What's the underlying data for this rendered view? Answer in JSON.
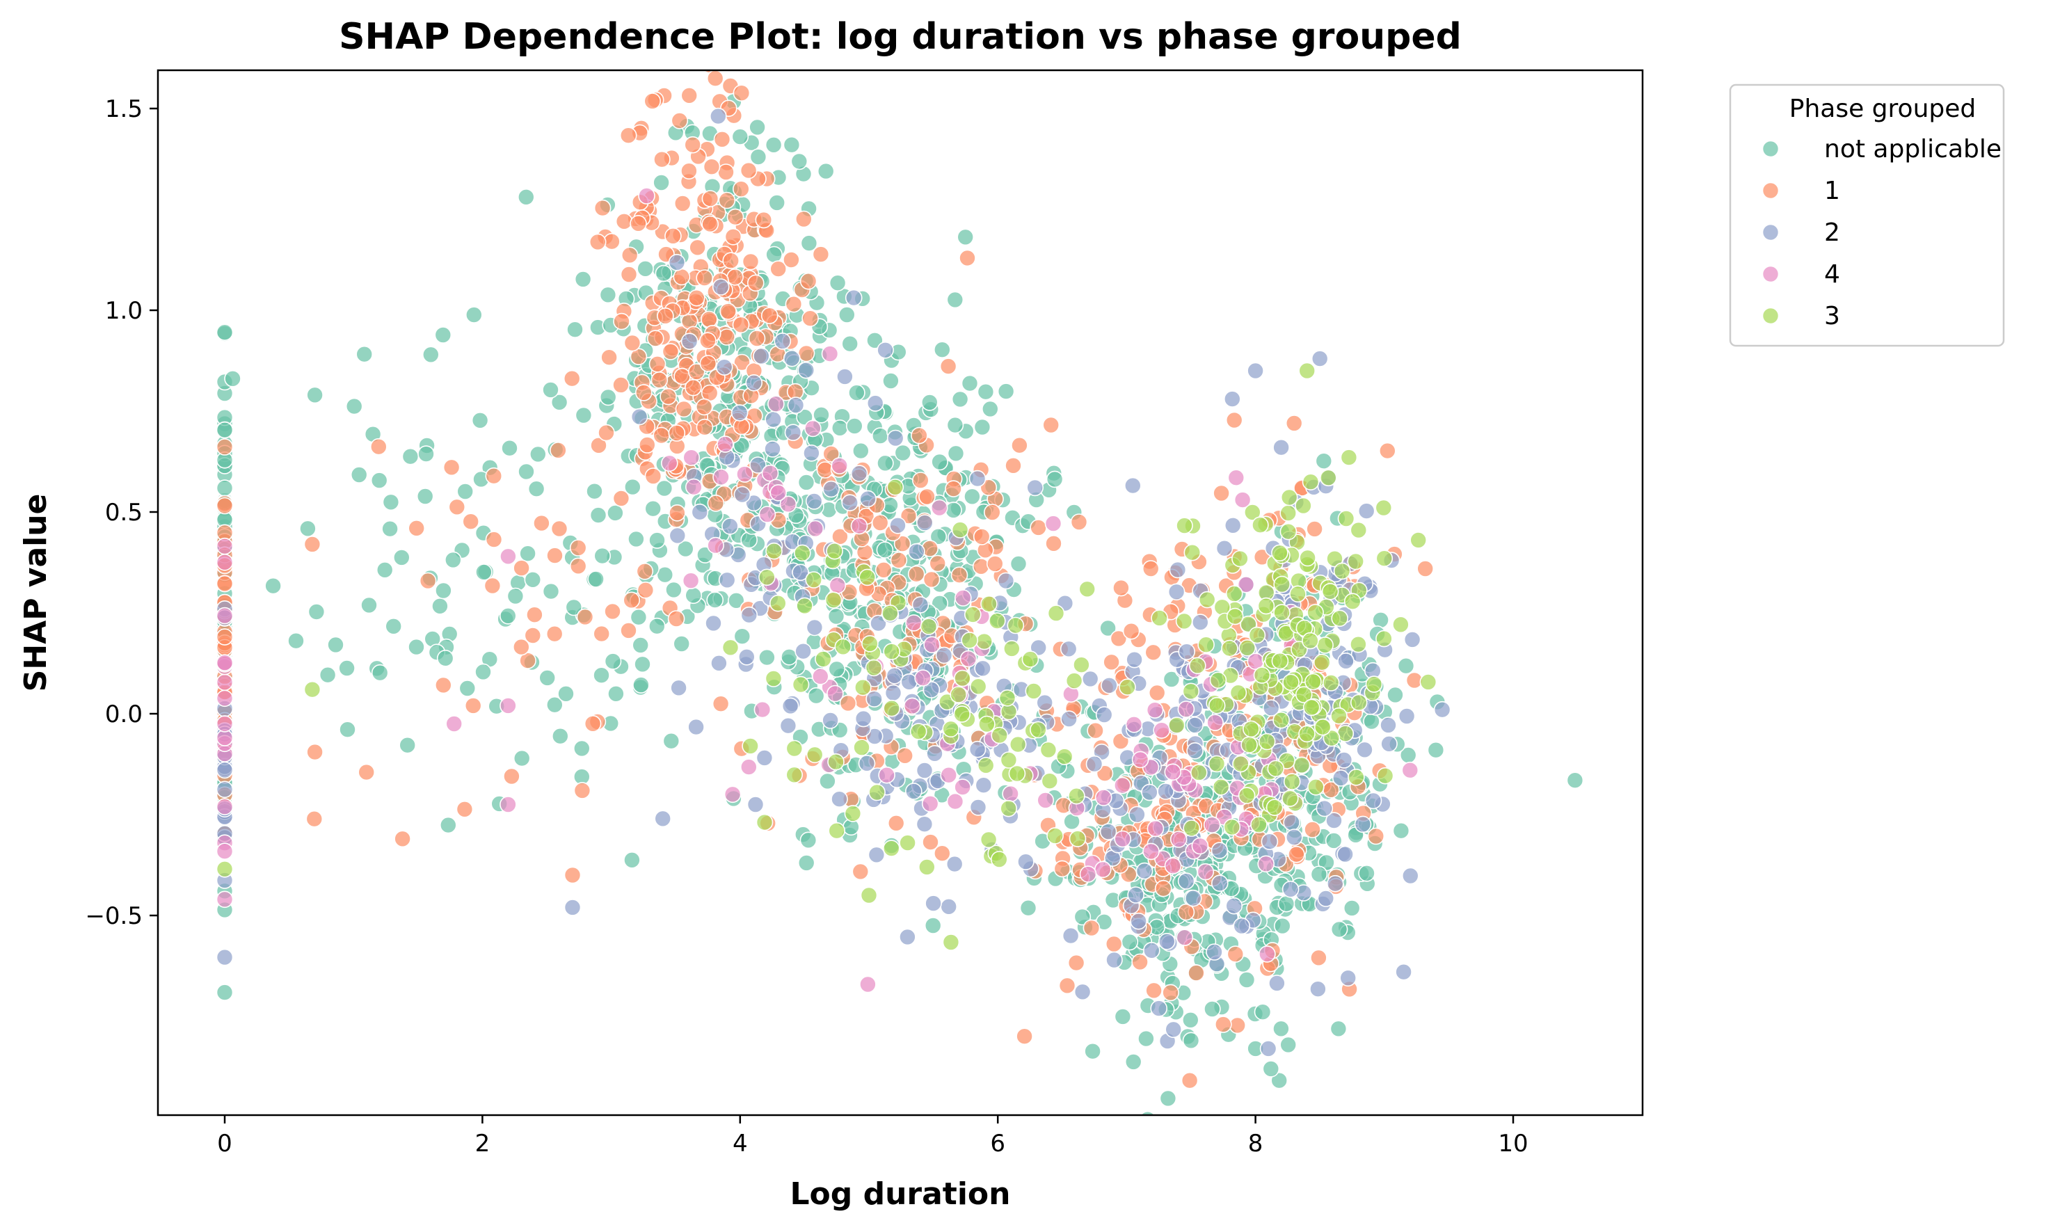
{
  "chart_data": {
    "type": "scatter",
    "title": "SHAP Dependence Plot: log duration vs phase grouped",
    "xlabel": "Log duration",
    "ylabel": "SHAP value",
    "xlim": [
      -0.5,
      11.05
    ],
    "ylim": [
      -1.0,
      1.6
    ],
    "x_ticks": [
      0,
      2,
      4,
      6,
      8,
      10
    ],
    "y_ticks": [
      -0.5,
      0.0,
      0.5,
      1.0,
      1.5
    ],
    "x_tick_labels": [
      "0",
      "2",
      "4",
      "6",
      "8",
      "10"
    ],
    "y_tick_labels": [
      "−0.5",
      "0.0",
      "0.5",
      "1.0",
      "1.5"
    ],
    "grid": false,
    "legend": {
      "title": "Phase grouped",
      "placement": "outside-top-right",
      "entries": [
        "not applicable",
        "1",
        "2",
        "4",
        "3"
      ]
    },
    "series": [
      {
        "name": "not applicable",
        "color": "#66c2a5",
        "opacity": 0.7,
        "generated_from": "cluster",
        "seed": 11,
        "count": 1300,
        "clusters": [
          {
            "x": 0,
            "y": 0.22,
            "sx": 0,
            "sy": 0.32,
            "n": 80
          },
          {
            "x": 2.2,
            "y": 0.35,
            "sx": 0.8,
            "sy": 0.28,
            "n": 120
          },
          {
            "x": 3.9,
            "y": 0.85,
            "sx": 0.45,
            "sy": 0.3,
            "n": 320
          },
          {
            "x": 5.2,
            "y": 0.35,
            "sx": 0.55,
            "sy": 0.28,
            "n": 330
          },
          {
            "x": 7.4,
            "y": -0.35,
            "sx": 0.5,
            "sy": 0.2,
            "n": 300
          },
          {
            "x": 8.4,
            "y": -0.1,
            "sx": 0.4,
            "sy": 0.25,
            "n": 150
          }
        ],
        "highlights": [
          [
            10.48,
            -0.165
          ],
          [
            8.12,
            -0.88
          ],
          [
            8.0,
            -0.83
          ],
          [
            7.5,
            -0.81
          ],
          [
            1.6,
            0.89
          ],
          [
            0.7,
            0.79
          ],
          [
            9.4,
            -0.09
          ],
          [
            9.13,
            -0.29
          ],
          [
            3.5,
            1.44
          ],
          [
            3.63,
            1.44
          ],
          [
            4.0,
            1.43
          ],
          [
            4.4,
            1.41
          ]
        ]
      },
      {
        "name": "1",
        "color": "#fc8d62",
        "opacity": 0.7,
        "generated_from": "cluster",
        "seed": 23,
        "count": 700,
        "clusters": [
          {
            "x": 0,
            "y": 0.15,
            "sx": 0,
            "sy": 0.25,
            "n": 40
          },
          {
            "x": 2.5,
            "y": 0.3,
            "sx": 0.7,
            "sy": 0.25,
            "n": 40
          },
          {
            "x": 3.7,
            "y": 0.95,
            "sx": 0.35,
            "sy": 0.28,
            "n": 250
          },
          {
            "x": 5.2,
            "y": 0.3,
            "sx": 0.5,
            "sy": 0.25,
            "n": 130
          },
          {
            "x": 7.3,
            "y": -0.2,
            "sx": 0.5,
            "sy": 0.25,
            "n": 150
          },
          {
            "x": 8.2,
            "y": 0.05,
            "sx": 0.4,
            "sy": 0.3,
            "n": 90
          }
        ],
        "highlights": [
          [
            3.53,
            1.47
          ],
          [
            8.3,
            0.72
          ],
          [
            1.38,
            -0.31
          ],
          [
            2.7,
            -0.4
          ],
          [
            0.68,
            0.42
          ],
          [
            0.7,
            -0.095
          ],
          [
            1.1,
            -0.145
          ],
          [
            7.75,
            -0.77
          ]
        ]
      },
      {
        "name": "2",
        "color": "#8da0cb",
        "opacity": 0.7,
        "generated_from": "cluster",
        "seed": 37,
        "count": 450,
        "clusters": [
          {
            "x": 0,
            "y": -0.1,
            "sx": 0,
            "sy": 0.2,
            "n": 20
          },
          {
            "x": 4.3,
            "y": 0.55,
            "sx": 0.4,
            "sy": 0.3,
            "n": 70
          },
          {
            "x": 5.6,
            "y": 0.0,
            "sx": 0.45,
            "sy": 0.2,
            "n": 110
          },
          {
            "x": 7.4,
            "y": -0.2,
            "sx": 0.45,
            "sy": 0.25,
            "n": 110
          },
          {
            "x": 8.4,
            "y": 0.05,
            "sx": 0.35,
            "sy": 0.25,
            "n": 140
          }
        ],
        "highlights": [
          [
            8.0,
            0.85
          ],
          [
            8.5,
            0.88
          ],
          [
            7.82,
            0.78
          ],
          [
            8.2,
            0.66
          ],
          [
            9.45,
            0.01
          ],
          [
            9.15,
            -0.64
          ],
          [
            2.7,
            -0.48
          ],
          [
            5.5,
            -0.47
          ],
          [
            3.4,
            -0.26
          ],
          [
            4.12,
            -0.225
          ],
          [
            8.1,
            -0.83
          ]
        ]
      },
      {
        "name": "4",
        "color": "#e78ac3",
        "opacity": 0.7,
        "generated_from": "cluster",
        "seed": 41,
        "count": 130,
        "clusters": [
          {
            "x": 0,
            "y": 0.0,
            "sx": 0,
            "sy": 0.25,
            "n": 15
          },
          {
            "x": 4.3,
            "y": 0.45,
            "sx": 0.4,
            "sy": 0.3,
            "n": 30
          },
          {
            "x": 5.8,
            "y": 0.0,
            "sx": 0.4,
            "sy": 0.2,
            "n": 30
          },
          {
            "x": 7.6,
            "y": -0.15,
            "sx": 0.45,
            "sy": 0.25,
            "n": 55
          }
        ],
        "highlights": [
          [
            1.78,
            -0.025
          ],
          [
            2.2,
            0.02
          ],
          [
            2.2,
            -0.225
          ],
          [
            2.2,
            0.39
          ],
          [
            7.85,
            0.585
          ],
          [
            7.9,
            0.53
          ],
          [
            9.2,
            -0.14
          ],
          [
            0,
            -0.46
          ]
        ]
      },
      {
        "name": "3",
        "color": "#a6d854",
        "opacity": 0.7,
        "generated_from": "cluster",
        "seed": 53,
        "count": 260,
        "clusters": [
          {
            "x": 4.8,
            "y": 0.1,
            "sx": 0.4,
            "sy": 0.2,
            "n": 40
          },
          {
            "x": 6.0,
            "y": -0.05,
            "sx": 0.4,
            "sy": 0.18,
            "n": 50
          },
          {
            "x": 8.2,
            "y": 0.15,
            "sx": 0.35,
            "sy": 0.2,
            "n": 170
          }
        ],
        "highlights": [
          [
            8.4,
            0.85
          ],
          [
            0.68,
            0.06
          ],
          [
            0,
            -0.385
          ],
          [
            4.08,
            -0.08
          ],
          [
            5.0,
            -0.45
          ],
          [
            5.45,
            -0.38
          ],
          [
            4.75,
            -0.29
          ],
          [
            5.3,
            -0.32
          ],
          [
            8.8,
            0.455
          ],
          [
            9.0,
            0.385
          ]
        ]
      }
    ]
  }
}
